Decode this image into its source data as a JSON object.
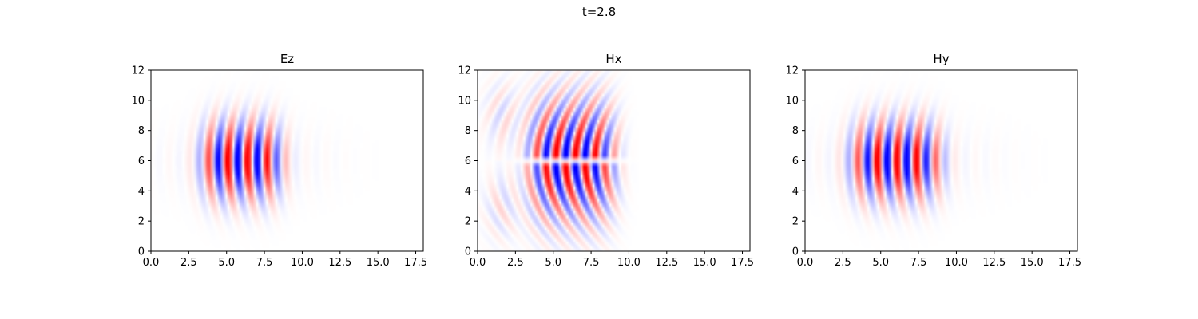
{
  "figure": {
    "suptitle": "t=2.8"
  },
  "chart_data": [
    {
      "type": "heatmap",
      "title": "Ez",
      "xlim": [
        0,
        18
      ],
      "ylim": [
        0,
        12
      ],
      "xticks": [
        "0.0",
        "2.5",
        "5.0",
        "7.5",
        "10.0",
        "12.5",
        "15.0",
        "17.5"
      ],
      "yticks": [
        "0",
        "2",
        "4",
        "6",
        "8",
        "10",
        "12"
      ],
      "colormap": "bwr",
      "colors": {
        "positive": "#ff0000",
        "negative": "#0000ff",
        "zero": "#ffffff"
      },
      "field": {
        "pattern": "plane-wave",
        "wavelength": 1.3,
        "x_center": 6.0,
        "x_halfwidth": 2.6,
        "y_center": 6.0,
        "y_halfwidth": 3.4,
        "phase": 0.6
      }
    },
    {
      "type": "heatmap",
      "title": "Hx",
      "xlim": [
        0,
        18
      ],
      "ylim": [
        0,
        12
      ],
      "xticks": [
        "0.0",
        "2.5",
        "5.0",
        "7.5",
        "10.0",
        "12.5",
        "15.0",
        "17.5"
      ],
      "yticks": [
        "0",
        "2",
        "4",
        "6",
        "8",
        "10",
        "12"
      ],
      "colormap": "bwr",
      "colors": {
        "positive": "#ff0000",
        "negative": "#0000ff",
        "zero": "#ffffff"
      },
      "field": {
        "pattern": "antisymmetric",
        "wavelength": 1.3,
        "x_center": 6.2,
        "x_halfwidth": 2.8,
        "y_center": 6.0,
        "y_halfwidth": 4.2,
        "phase": 0.2
      }
    },
    {
      "type": "heatmap",
      "title": "Hy",
      "xlim": [
        0,
        18
      ],
      "ylim": [
        0,
        12
      ],
      "xticks": [
        "0.0",
        "2.5",
        "5.0",
        "7.5",
        "10.0",
        "12.5",
        "15.0",
        "17.5"
      ],
      "yticks": [
        "0",
        "2",
        "4",
        "6",
        "8",
        "10",
        "12"
      ],
      "colormap": "bwr",
      "colors": {
        "positive": "#ff0000",
        "negative": "#0000ff",
        "zero": "#ffffff"
      },
      "field": {
        "pattern": "plane-wave",
        "wavelength": 1.3,
        "x_center": 6.0,
        "x_halfwidth": 2.9,
        "y_center": 6.0,
        "y_halfwidth": 3.4,
        "phase": 2.1
      }
    }
  ]
}
